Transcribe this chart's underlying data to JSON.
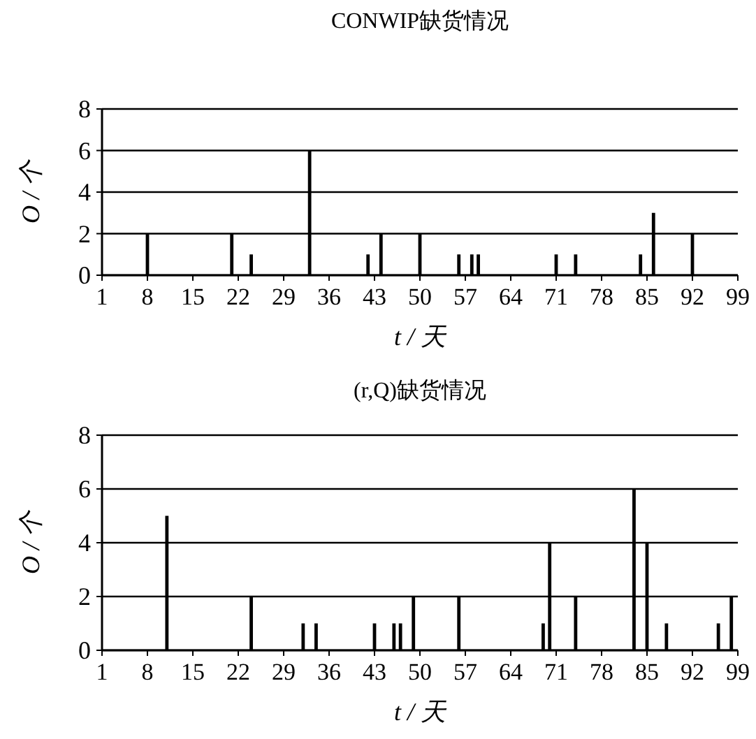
{
  "chart_data": [
    {
      "type": "bar",
      "title": "CONWIP缺货情况",
      "xlabel": "t / 天",
      "ylabel": "O / 个",
      "color": "#000000",
      "grid": "y",
      "x": [
        8,
        21,
        24,
        33,
        42,
        44,
        50,
        56,
        58,
        59,
        71,
        74,
        84,
        86,
        92
      ],
      "values": [
        2,
        2,
        1,
        6,
        1,
        2,
        2,
        1,
        1,
        1,
        1,
        1,
        1,
        3,
        2
      ],
      "xlim": [
        1,
        99
      ],
      "xticks": [
        1,
        8,
        15,
        22,
        29,
        36,
        43,
        50,
        57,
        64,
        71,
        78,
        85,
        92,
        99
      ],
      "ylim": [
        0,
        8
      ],
      "yticks": [
        0,
        2,
        4,
        6,
        8
      ]
    },
    {
      "type": "bar",
      "title": "(r,Q)缺货情况",
      "xlabel": "t / 天",
      "ylabel": "O / 个",
      "color": "#000000",
      "grid": "y",
      "x": [
        11,
        24,
        32,
        34,
        43,
        46,
        47,
        49,
        56,
        69,
        70,
        74,
        83,
        85,
        88,
        96,
        98
      ],
      "values": [
        5,
        2,
        1,
        1,
        1,
        1,
        1,
        2,
        2,
        1,
        4,
        2,
        6,
        4,
        1,
        1,
        2
      ],
      "xlim": [
        1,
        99
      ],
      "xticks": [
        1,
        8,
        15,
        22,
        29,
        36,
        43,
        50,
        57,
        64,
        71,
        78,
        85,
        92,
        99
      ],
      "ylim": [
        0,
        8
      ],
      "yticks": [
        0,
        2,
        4,
        6,
        8
      ]
    }
  ]
}
